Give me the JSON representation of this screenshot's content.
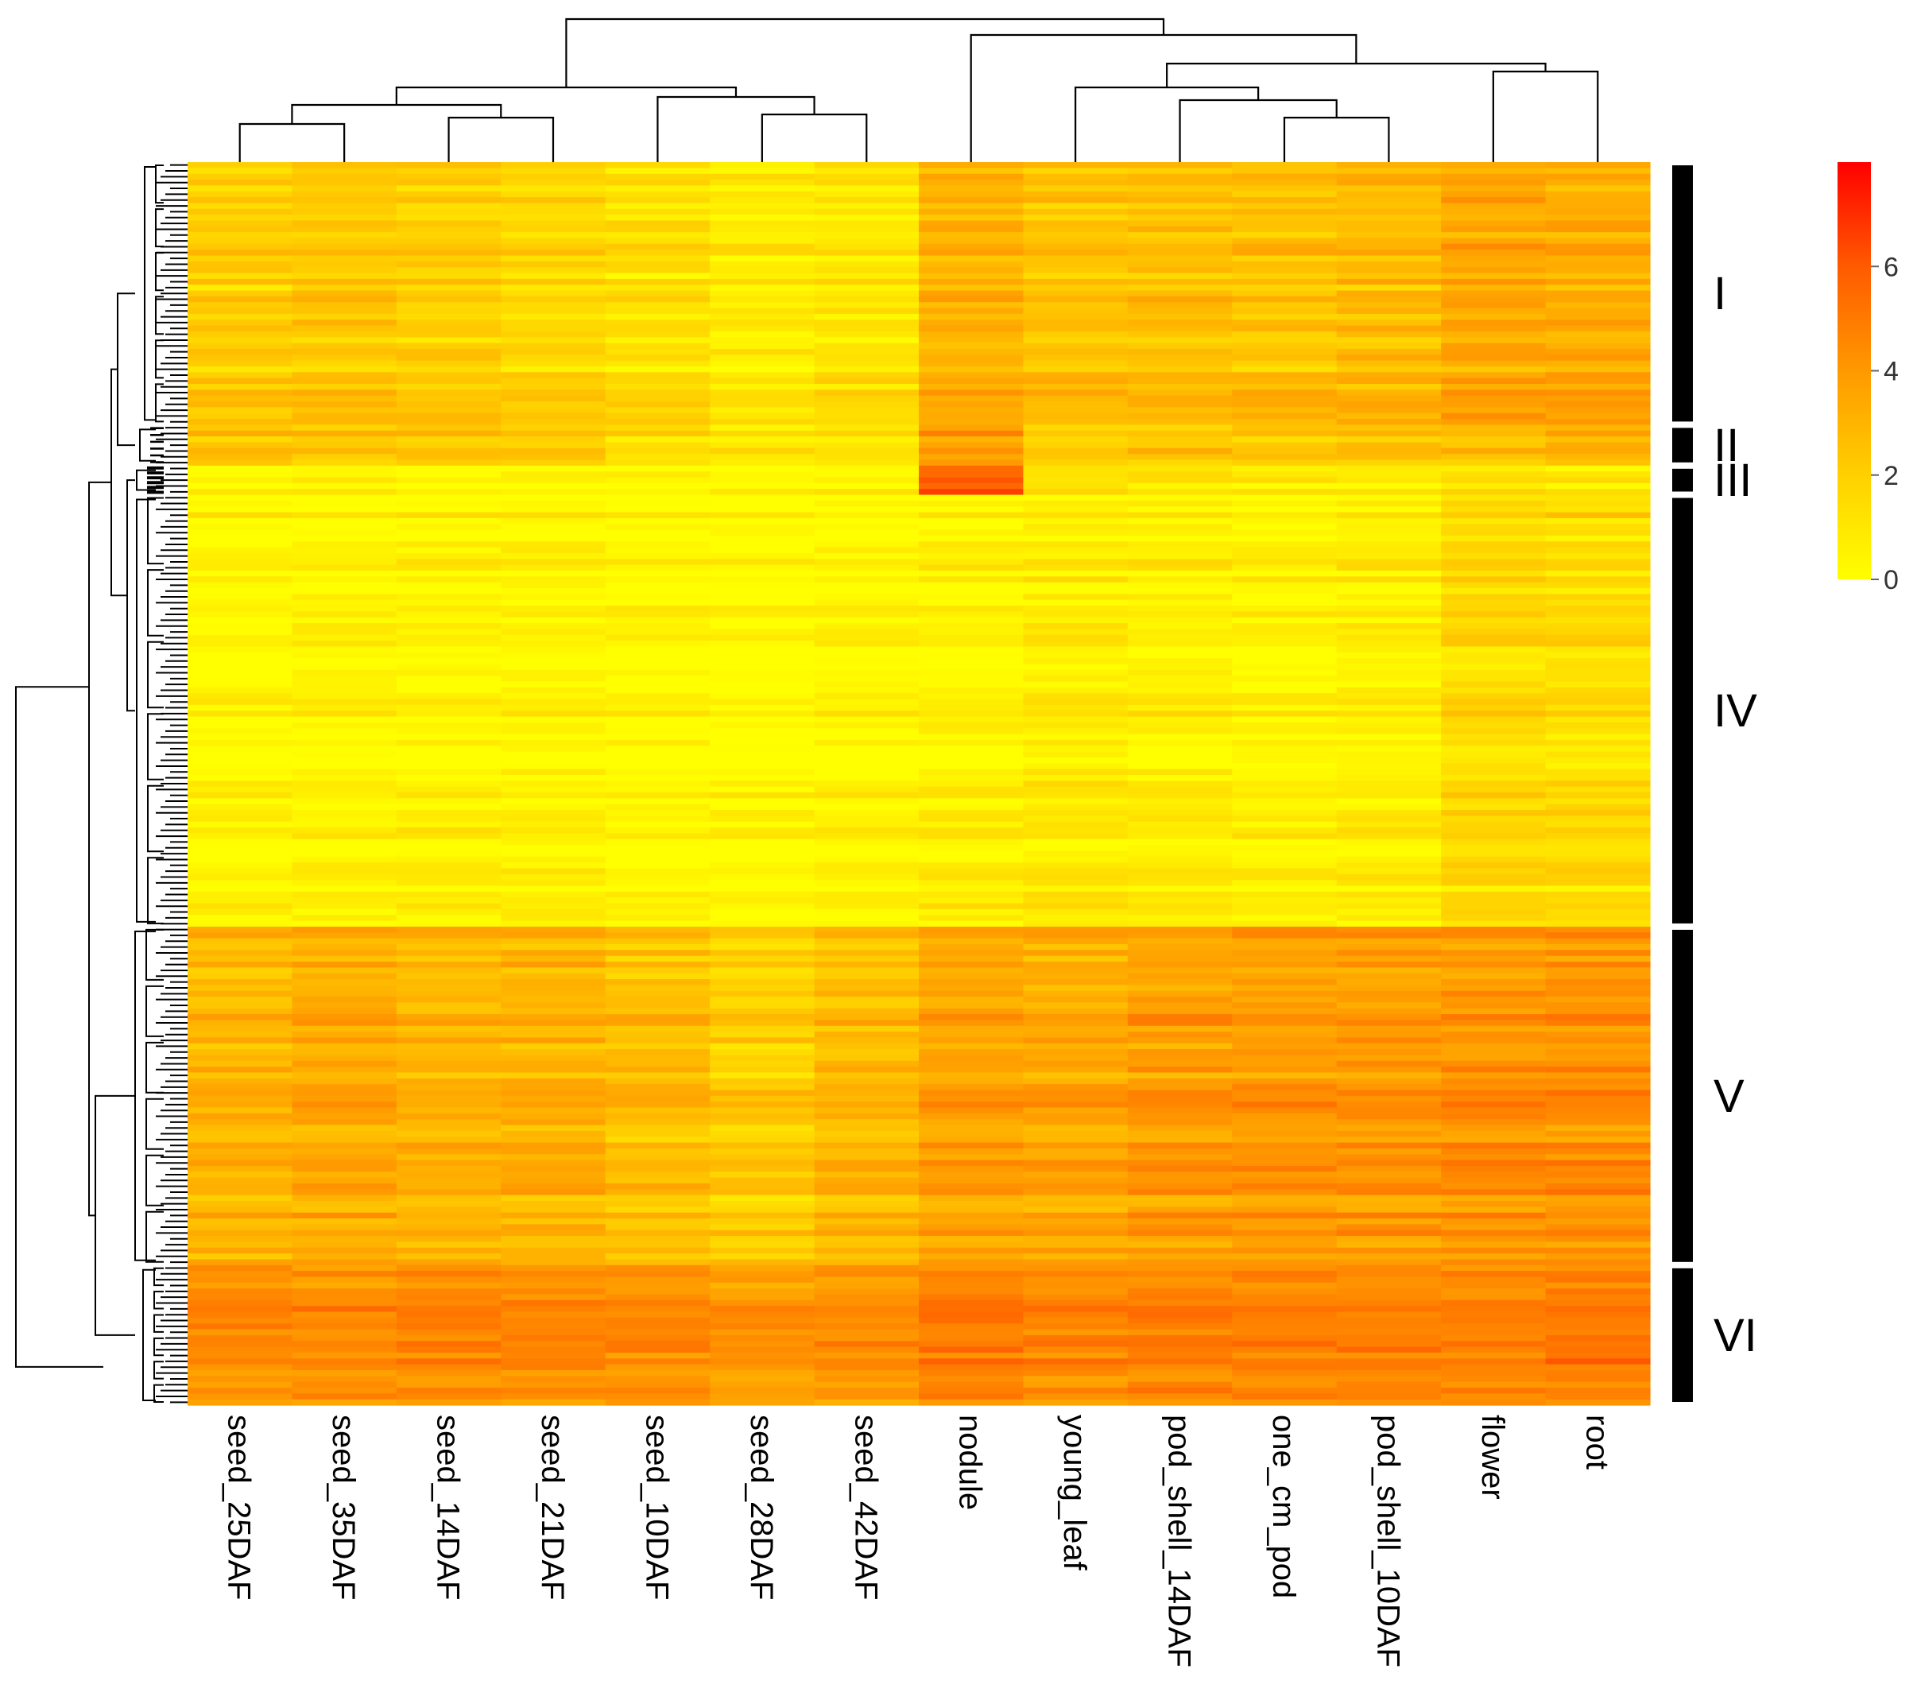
{
  "chart_data": {
    "type": "heatmap",
    "title": "",
    "columns": [
      "seed_25DAF",
      "seed_35DAF",
      "seed_14DAF",
      "seed_21DAF",
      "seed_10DAF",
      "seed_28DAF",
      "seed_42DAF",
      "nodule",
      "young_leaf",
      "pod_shell_14DAF",
      "one_cm_pod",
      "pod_shell_10DAF",
      "flower",
      "root"
    ],
    "clusters": [
      {
        "label": "I",
        "rows": 45,
        "levels": [
          1.9,
          2.2,
          1.9,
          1.6,
          1.2,
          0.7,
          1.0,
          2.9,
          2.4,
          2.5,
          2.4,
          2.6,
          3.4,
          3.2
        ]
      },
      {
        "label": "II",
        "rows": 7,
        "levels": [
          2.3,
          2.2,
          2.3,
          2.0,
          1.3,
          0.8,
          1.0,
          3.8,
          2.1,
          2.3,
          2.2,
          2.4,
          2.6,
          3.2
        ]
      },
      {
        "label": "III",
        "rows": 5,
        "levels": [
          0.1,
          0.1,
          0.1,
          0.1,
          0.1,
          0.1,
          0.2,
          5.6,
          1.0,
          0.8,
          0.6,
          0.7,
          1.0,
          0.6
        ]
      },
      {
        "label": "IV",
        "rows": 74,
        "levels": [
          0.3,
          0.4,
          0.4,
          0.5,
          0.2,
          0.1,
          0.3,
          0.6,
          0.8,
          0.6,
          0.5,
          0.7,
          1.6,
          1.5
        ]
      },
      {
        "label": "V",
        "rows": 58,
        "levels": [
          2.9,
          3.3,
          3.0,
          3.1,
          2.6,
          2.0,
          2.7,
          3.6,
          3.4,
          3.8,
          4.0,
          3.9,
          4.1,
          4.2
        ]
      },
      {
        "label": "VI",
        "rows": 24,
        "levels": [
          4.3,
          4.3,
          4.4,
          4.3,
          4.1,
          3.9,
          4.1,
          4.7,
          4.4,
          4.6,
          4.5,
          4.6,
          4.5,
          4.8
        ]
      }
    ],
    "column_dendrogram_order": [
      0,
      1,
      2,
      3,
      4,
      5,
      6,
      7,
      8,
      9,
      10,
      11,
      12,
      13
    ],
    "color_scale": {
      "min": 0,
      "max": 8,
      "ticks": [
        0,
        2,
        4,
        6
      ],
      "low_color": "#ffff00",
      "mid_color": "#ff9900",
      "high_color": "#ff0000"
    },
    "row_cluster_labels": [
      "I",
      "II",
      "III",
      "IV",
      "V",
      "VI"
    ],
    "xlabel": "",
    "ylabel": ""
  }
}
